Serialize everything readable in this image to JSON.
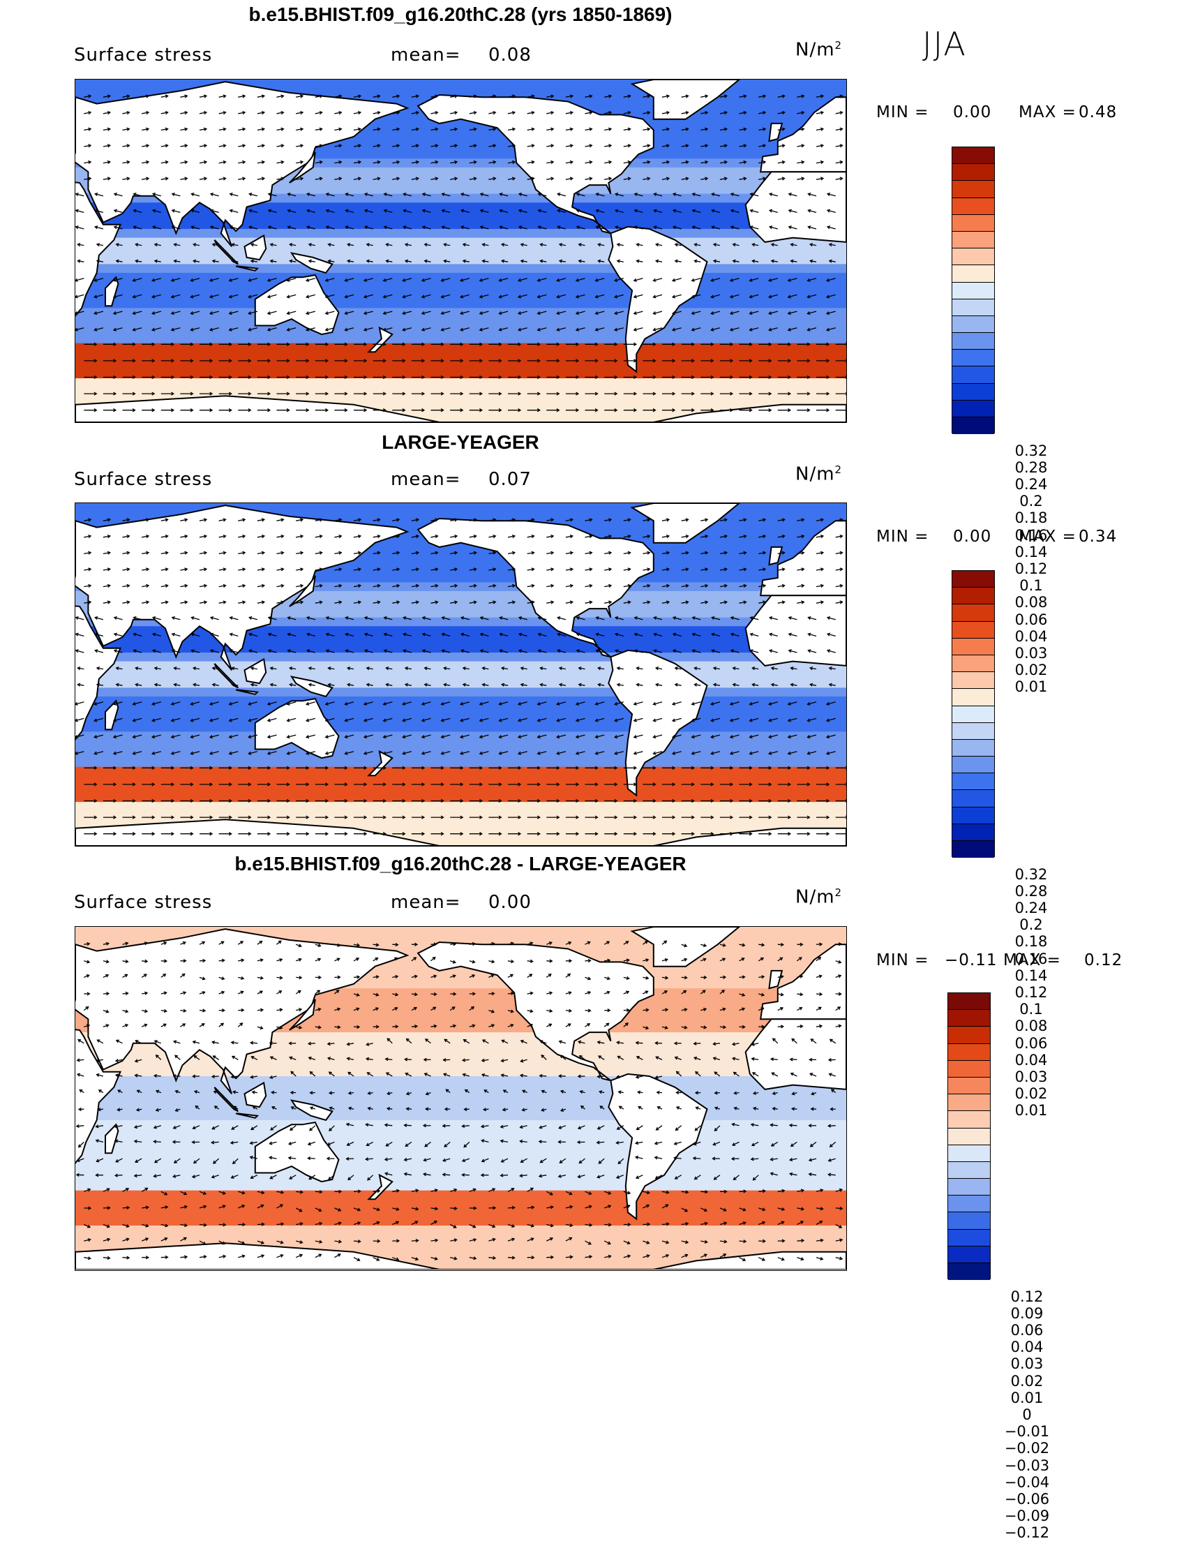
{
  "season": "JJA",
  "colors": {
    "abs_scale": [
      "#000b7a",
      "#0022b5",
      "#0b3fd6",
      "#2257e6",
      "#3d73ee",
      "#6a94ee",
      "#98b6f0",
      "#c4d6f6",
      "#dcebf9",
      "#fcebd6",
      "#fcc9ac",
      "#f9a27c",
      "#f57d4d",
      "#e9501f",
      "#d43a0b",
      "#b21f00",
      "#860c05"
    ],
    "diff_scale": [
      "#001580",
      "#0a2bc2",
      "#1c4ce0",
      "#3a6ce8",
      "#6b92ec",
      "#9ab5f1",
      "#bcd0f4",
      "#dae7f9",
      "#fbe7d6",
      "#fccdb3",
      "#f9aa86",
      "#f6875c",
      "#f16636",
      "#e44a17",
      "#c82d03",
      "#a01502",
      "#7a0a06"
    ],
    "land": "#ffffff",
    "coast": "#000000",
    "arrow": "#000000"
  },
  "panels": [
    {
      "title": "b.e15.BHIST.f09_g16.20thC.28 (yrs 1850-1869)",
      "field_label": "Surface stress",
      "mean_label": "mean=",
      "mean_value": "0.08",
      "units": "N/m",
      "units_sup": "2",
      "min_label": "MIN =",
      "min_value": "0.00",
      "max_label": "MAX =",
      "max_value": "0.48",
      "colorbar_ticks": [
        "0.32",
        "0.28",
        "0.24",
        "0.2",
        "0.18",
        "0.16",
        "0.14",
        "0.12",
        "0.1",
        "0.08",
        "0.06",
        "0.04",
        "0.03",
        "0.02",
        "0.01"
      ]
    },
    {
      "title": "LARGE-YEAGER",
      "field_label": "Surface stress",
      "mean_label": "mean=",
      "mean_value": "0.07",
      "units": "N/m",
      "units_sup": "2",
      "min_label": "MIN =",
      "min_value": "0.00",
      "max_label": "MAX =",
      "max_value": "0.34",
      "colorbar_ticks": [
        "0.32",
        "0.28",
        "0.24",
        "0.2",
        "0.18",
        "0.16",
        "0.14",
        "0.12",
        "0.1",
        "0.08",
        "0.06",
        "0.04",
        "0.03",
        "0.02",
        "0.01"
      ]
    },
    {
      "title": "b.e15.BHIST.f09_g16.20thC.28 - LARGE-YEAGER",
      "field_label": "Surface stress",
      "mean_label": "mean=",
      "mean_value": "0.00",
      "units": "N/m",
      "units_sup": "2",
      "min_label": "MIN =",
      "min_value": "−0.11",
      "max_label": "MAX =",
      "max_value": "0.12",
      "colorbar_ticks": [
        "0.12",
        "0.09",
        "0.06",
        "0.04",
        "0.03",
        "0.02",
        "0.01",
        "0",
        "−0.01",
        "−0.02",
        "−0.03",
        "−0.04",
        "−0.06",
        "−0.09",
        "−0.12"
      ]
    }
  ],
  "chart_data": [
    {
      "type": "heatmap",
      "title": "b.e15.BHIST.f09_g16.20thC.28 (yrs 1850-1869)",
      "variable": "Surface stress",
      "units": "N/m2",
      "season": "JJA",
      "mean": 0.08,
      "min": 0.0,
      "max": 0.48,
      "levels": [
        0.01,
        0.02,
        0.03,
        0.04,
        0.06,
        0.08,
        0.1,
        0.12,
        0.14,
        0.16,
        0.18,
        0.2,
        0.24,
        0.28,
        0.32
      ]
    },
    {
      "type": "heatmap",
      "title": "LARGE-YEAGER",
      "variable": "Surface stress",
      "units": "N/m2",
      "season": "JJA",
      "mean": 0.07,
      "min": 0.0,
      "max": 0.34,
      "levels": [
        0.01,
        0.02,
        0.03,
        0.04,
        0.06,
        0.08,
        0.1,
        0.12,
        0.14,
        0.16,
        0.18,
        0.2,
        0.24,
        0.28,
        0.32
      ]
    },
    {
      "type": "heatmap",
      "title": "b.e15.BHIST.f09_g16.20thC.28 - LARGE-YEAGER",
      "variable": "Surface stress",
      "units": "N/m2",
      "season": "JJA",
      "mean": 0.0,
      "min": -0.11,
      "max": 0.12,
      "levels": [
        -0.12,
        -0.09,
        -0.06,
        -0.04,
        -0.03,
        -0.02,
        -0.01,
        0,
        0.01,
        0.02,
        0.03,
        0.04,
        0.06,
        0.09,
        0.12
      ]
    }
  ]
}
